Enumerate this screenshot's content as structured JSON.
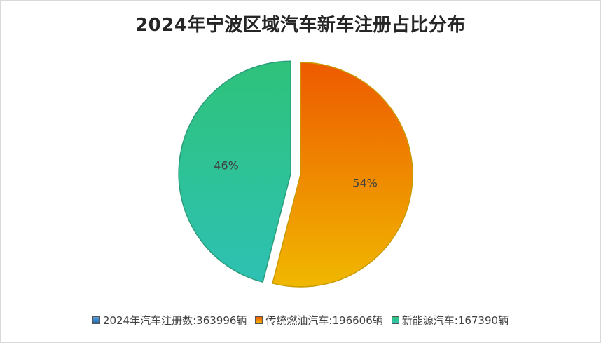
{
  "chart_data": {
    "type": "pie",
    "title": "2024年宁波区域汽车新车注册占比分布",
    "slices": [
      {
        "name": "传统燃油汽车",
        "value": 196606,
        "percent_label": "54%",
        "color_top": "#ee5a00",
        "color_bottom": "#f0b800",
        "stroke": "#c99a00",
        "exploded": false
      },
      {
        "name": "新能源汽车",
        "value": 167390,
        "percent_label": "46%",
        "color_top": "#2ec27a",
        "color_bottom": "#2ec1b4",
        "stroke": "#2a9d7a",
        "exploded": true
      }
    ],
    "legend_position": "bottom",
    "legend": [
      {
        "label": "2024年汽车注册数:363996辆",
        "color_top": "#5aa6e0",
        "color_bottom": "#1f5fa8"
      },
      {
        "label": "传统燃油汽车:196606辆",
        "color_top": "#ee5a00",
        "color_bottom": "#f0b800"
      },
      {
        "label": "新能源汽车:167390辆",
        "color_top": "#2ec27a",
        "color_bottom": "#2ec1b4"
      }
    ]
  }
}
